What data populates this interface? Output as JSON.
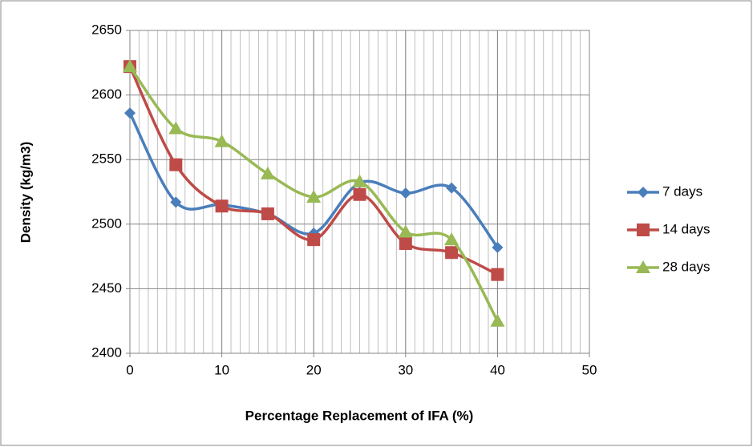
{
  "chart_data": {
    "type": "scatter_smooth",
    "xlabel": "Percentage Replacement of IFA (%)",
    "ylabel": "Density (kg/m3)",
    "x": [
      0,
      5,
      10,
      15,
      20,
      25,
      30,
      35,
      40
    ],
    "series": [
      {
        "name": "7 days",
        "color": "#4a7ebb",
        "marker": "diamond",
        "values": [
          2586,
          2517,
          2515,
          2508,
          2493,
          2532,
          2524,
          2528,
          2482
        ]
      },
      {
        "name": "14 days",
        "color": "#be4b48",
        "marker": "square",
        "values": [
          2622,
          2546,
          2514,
          2508,
          2488,
          2523,
          2485,
          2478,
          2461
        ]
      },
      {
        "name": "28 days",
        "color": "#98b954",
        "marker": "triangle",
        "values": [
          2622,
          2574,
          2564,
          2539,
          2521,
          2533,
          2494,
          2488,
          2425
        ]
      }
    ],
    "xlim": [
      0,
      50
    ],
    "xticks": [
      0,
      10,
      20,
      30,
      40,
      50
    ],
    "ylim": [
      2400,
      2650
    ],
    "yticks": [
      2400,
      2450,
      2500,
      2550,
      2600,
      2650
    ],
    "grid": true,
    "x_minor_grid_step": 1,
    "legend": "right"
  }
}
